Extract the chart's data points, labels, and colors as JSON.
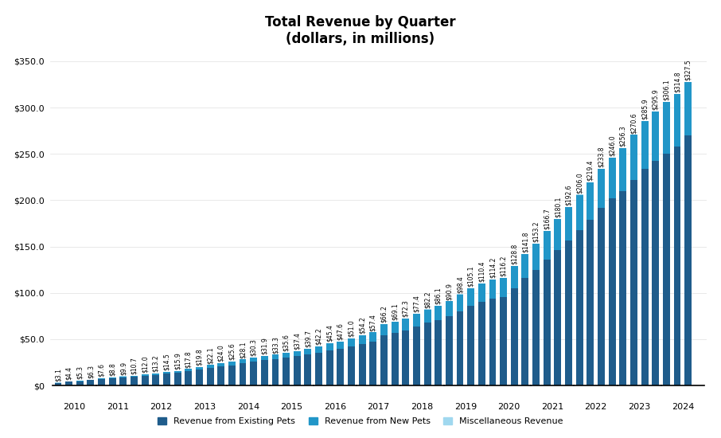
{
  "title": "Total Revenue by Quarter\n(dollars, in millions)",
  "year_labels": [
    "2010",
    "2011",
    "2012",
    "2013",
    "2014",
    "2015",
    "2016",
    "2017",
    "2018",
    "2019",
    "2020",
    "2021",
    "2022",
    "2023",
    "2024"
  ],
  "total_revenue": [
    3.1,
    4.4,
    5.3,
    6.3,
    7.6,
    8.8,
    9.9,
    10.7,
    12.0,
    13.2,
    14.5,
    15.9,
    17.8,
    19.8,
    22.1,
    24.0,
    25.6,
    28.1,
    30.3,
    31.9,
    33.3,
    35.6,
    37.4,
    39.7,
    42.2,
    45.4,
    47.6,
    51.0,
    54.2,
    57.4,
    66.2,
    69.1,
    72.3,
    77.4,
    82.2,
    86.1,
    90.9,
    98.4,
    105.1,
    110.4,
    114.2,
    116.2,
    128.8,
    141.8,
    153.2,
    166.7,
    180.1,
    192.6,
    206.0,
    219.4,
    233.8,
    246.0,
    256.3,
    270.6,
    285.9,
    295.9,
    306.1,
    314.8,
    327.5,
    0.0
  ],
  "existing_pets": [
    2.8,
    3.9,
    4.7,
    5.6,
    6.7,
    7.7,
    8.7,
    9.4,
    10.5,
    11.5,
    12.7,
    13.8,
    15.4,
    17.1,
    19.0,
    20.6,
    21.9,
    24.0,
    25.8,
    27.1,
    28.2,
    30.0,
    31.5,
    33.3,
    35.2,
    37.8,
    39.7,
    42.5,
    44.8,
    47.5,
    54.4,
    57.0,
    59.5,
    63.8,
    67.6,
    70.7,
    74.5,
    80.4,
    86.0,
    90.5,
    93.4,
    95.3,
    105.3,
    115.9,
    124.6,
    135.7,
    146.3,
    156.6,
    167.5,
    179.2,
    191.5,
    201.8,
    209.7,
    221.5,
    233.9,
    242.5,
    250.1,
    258.0,
    270.0,
    0.0
  ],
  "new_pets": [
    0.2,
    0.4,
    0.5,
    0.6,
    0.8,
    1.0,
    1.1,
    1.2,
    1.4,
    1.6,
    1.7,
    2.0,
    2.3,
    2.6,
    3.0,
    3.3,
    3.6,
    4.0,
    4.4,
    4.7,
    5.0,
    5.5,
    5.8,
    6.3,
    6.9,
    7.5,
    7.8,
    8.4,
    9.3,
    9.8,
    11.7,
    12.0,
    12.7,
    13.5,
    14.5,
    15.3,
    16.3,
    18.0,
    19.0,
    19.8,
    20.7,
    20.8,
    23.4,
    25.8,
    28.5,
    30.9,
    33.7,
    36.0,
    38.4,
    40.1,
    42.2,
    44.1,
    46.5,
    49.0,
    51.9,
    53.3,
    55.9,
    56.7,
    57.4,
    0.0
  ],
  "misc_revenue": [
    0.1,
    0.1,
    0.1,
    0.1,
    0.1,
    0.1,
    0.1,
    0.1,
    0.1,
    0.1,
    0.1,
    0.1,
    0.1,
    0.1,
    0.1,
    0.1,
    0.1,
    0.1,
    0.1,
    0.1,
    0.1,
    0.1,
    0.1,
    0.1,
    0.1,
    0.1,
    0.1,
    0.1,
    0.1,
    0.1,
    0.1,
    0.1,
    0.1,
    0.1,
    0.1,
    0.1,
    0.1,
    0.1,
    0.1,
    0.1,
    0.1,
    0.1,
    0.1,
    0.1,
    0.1,
    0.1,
    0.1,
    0.0,
    0.1,
    0.1,
    0.1,
    0.1,
    0.1,
    0.1,
    0.1,
    0.1,
    0.1,
    0.1,
    0.1,
    0.0
  ],
  "color_existing": "#1f5c8b",
  "color_new": "#2196c8",
  "color_misc": "#a0d8ef",
  "bar_width": 0.65,
  "ylim": [
    0,
    350
  ],
  "yticks": [
    0,
    50,
    100,
    150,
    200,
    250,
    300,
    350
  ],
  "legend_labels": [
    "Revenue from Existing Pets",
    "Revenue from New Pets",
    "Miscellaneous Revenue"
  ],
  "font_size_title": 12,
  "font_size_labels": 5.5,
  "font_size_axis": 8,
  "font_size_legend": 8
}
